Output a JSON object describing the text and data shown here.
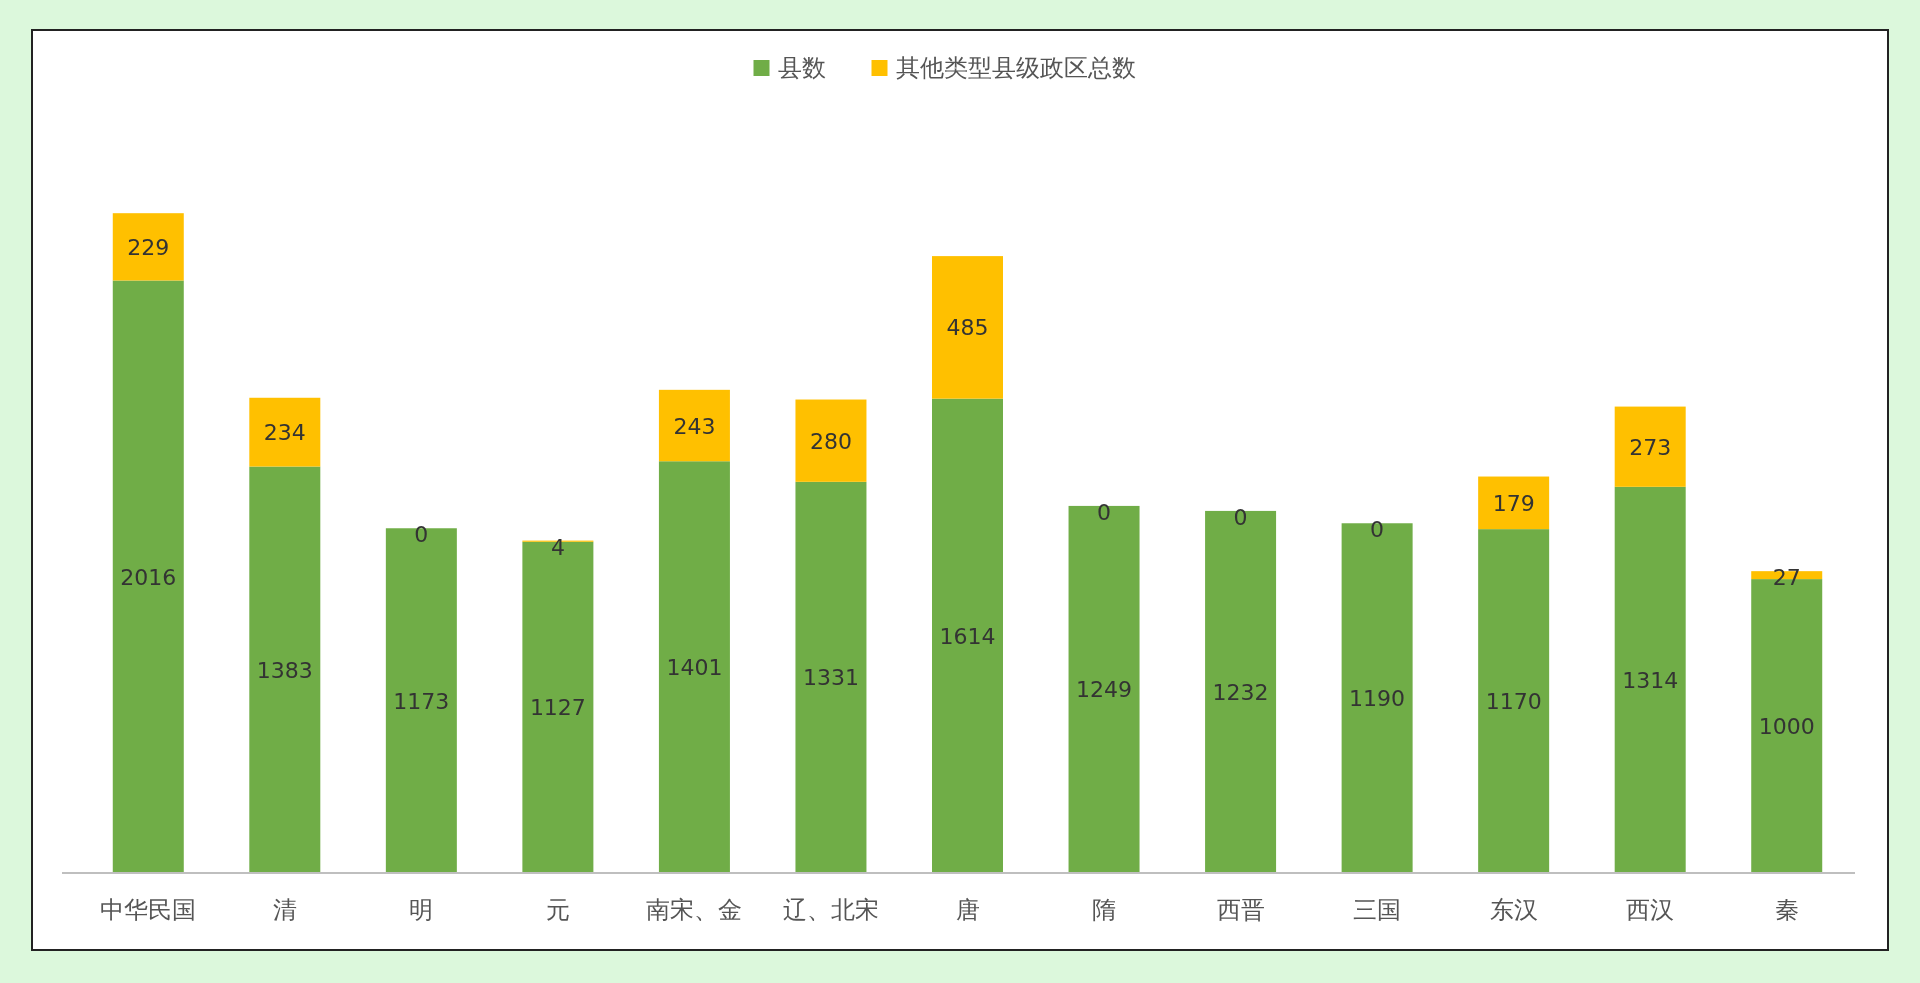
{
  "chart_data": {
    "type": "bar",
    "stacked": true,
    "data_labels": true,
    "legend": "top",
    "grid": false,
    "categories": [
      "中华民国",
      "清",
      "明",
      "元",
      "南宋、金",
      "辽、北宋",
      "唐",
      "隋",
      "西晋",
      "三国",
      "东汉",
      "西汉",
      "秦"
    ],
    "series": [
      {
        "name": "县数",
        "color": "#70ad47",
        "values": [
          2016,
          1383,
          1173,
          1127,
          1401,
          1331,
          1614,
          1249,
          1232,
          1190,
          1170,
          1314,
          1000
        ]
      },
      {
        "name": "其他类型县级政区总数",
        "color": "#ffc000",
        "values": [
          229,
          234,
          0,
          4,
          243,
          280,
          485,
          0,
          0,
          0,
          179,
          273,
          27
        ]
      }
    ]
  }
}
